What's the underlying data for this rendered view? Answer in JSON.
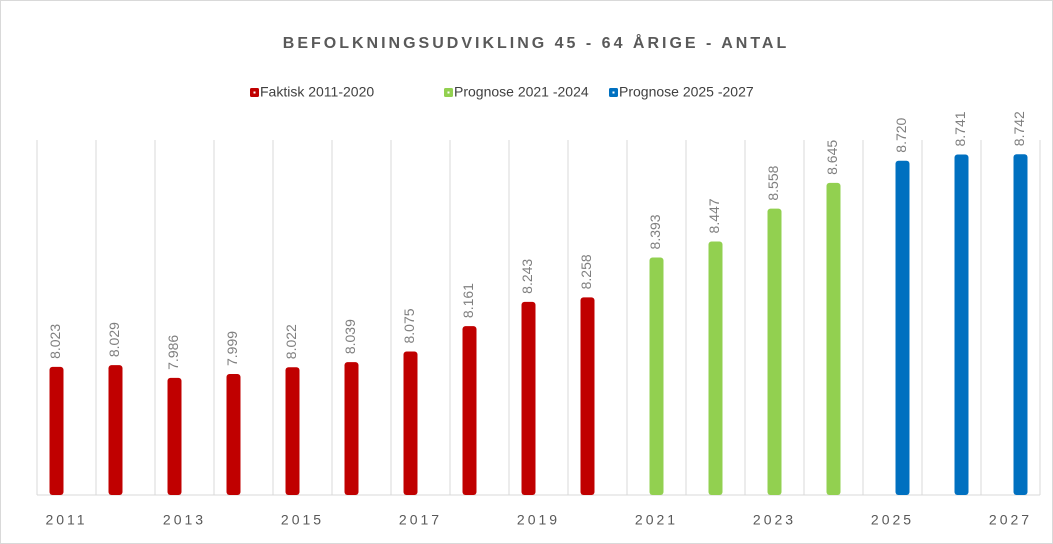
{
  "chart_data": {
    "type": "bar",
    "title": "BEFOLKNINGSUDVIKLING 45 - 64 ÅRIGE - ANTAL",
    "categories": [
      "2011",
      null,
      "2013",
      null,
      "2015",
      null,
      "2017",
      null,
      "2019",
      null,
      "2021",
      null,
      "2023",
      null,
      "2025",
      null,
      "2027"
    ],
    "series": [
      {
        "name": "Faktisk 2011-2020",
        "color": "#c00000",
        "values": [
          8023,
          8029,
          7986,
          7999,
          8022,
          8039,
          8075,
          8161,
          8243,
          8258,
          null,
          null,
          null,
          null,
          null,
          null,
          null
        ],
        "value_labels": [
          "8.023",
          "8.029",
          "7.986",
          "7.999",
          "8.022",
          "8.039",
          "8.075",
          "8.161",
          "8.243",
          "8.258",
          null,
          null,
          null,
          null,
          null,
          null,
          null
        ]
      },
      {
        "name": "Prognose 2021 -2024",
        "color": "#92d050",
        "values": [
          null,
          null,
          null,
          null,
          null,
          null,
          null,
          null,
          null,
          null,
          8393,
          8447,
          8558,
          8645,
          null,
          null,
          null
        ],
        "value_labels": [
          null,
          null,
          null,
          null,
          null,
          null,
          null,
          null,
          null,
          null,
          "8.393",
          "8.447",
          "8.558",
          "8.645",
          null,
          null,
          null
        ]
      },
      {
        "name": "Prognose 2025 -2027",
        "color": "#0070c0",
        "values": [
          null,
          null,
          null,
          null,
          null,
          null,
          null,
          null,
          null,
          null,
          null,
          null,
          null,
          null,
          8720,
          8741,
          8742
        ],
        "value_labels": [
          null,
          null,
          null,
          null,
          null,
          null,
          null,
          null,
          null,
          null,
          null,
          null,
          null,
          null,
          "8.720",
          "8.741",
          "8.742"
        ]
      }
    ],
    "ylim": [
      7590,
      8790
    ]
  }
}
